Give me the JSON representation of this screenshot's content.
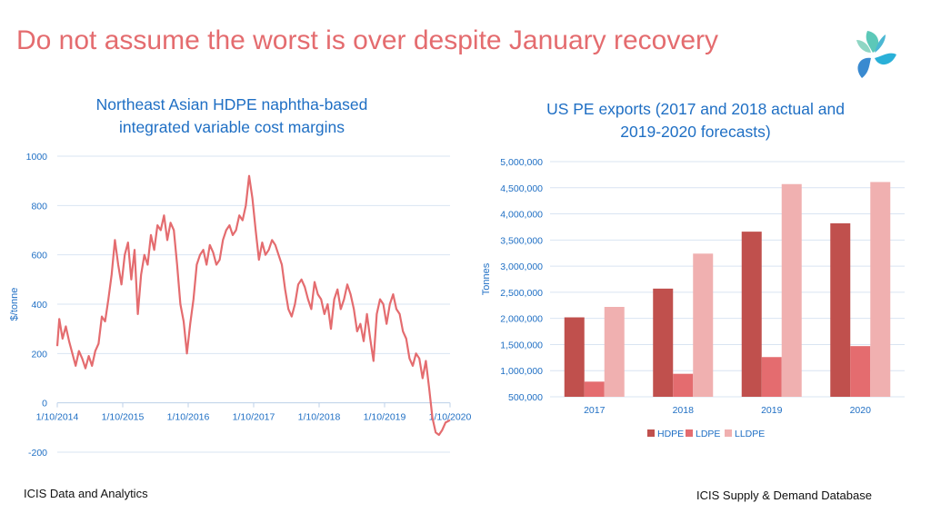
{
  "slide": {
    "title": "Do not assume the worst is over despite January recovery",
    "logo_icon": "icis-logo-icon",
    "footer_left": "ICIS Data and Analytics",
    "footer_right": "ICIS Supply & Demand Database"
  },
  "colors": {
    "title": "#e46c6f",
    "chart_title": "#1f6fc4",
    "line": "#e46c6f",
    "hdpe": "#c0504d",
    "ldpe": "#e46c6f",
    "lldpe": "#f0b0b0"
  },
  "chart_data": [
    {
      "type": "line",
      "title_lines": [
        "Northeast Asian HDPE naphtha-based",
        "integrated variable cost margins"
      ],
      "ylabel": "$/tonne",
      "xlabel": "",
      "ylim": [
        -200,
        1000
      ],
      "yticks": [
        -200,
        0,
        200,
        400,
        600,
        800,
        1000
      ],
      "ytick_labels": [
        "-200",
        "0",
        "200",
        "400",
        "600",
        "800",
        "1000"
      ],
      "xlim": [
        2014.77,
        2020.77
      ],
      "xticks": [
        2014.77,
        2015.77,
        2016.77,
        2017.77,
        2018.77,
        2019.77,
        2020.77
      ],
      "xtick_labels": [
        "1/10/2014",
        "1/10/2015",
        "1/10/2016",
        "1/10/2017",
        "1/10/2018",
        "1/10/2019",
        "1/10/2020"
      ],
      "grid": "horizontal",
      "series": [
        {
          "x": [
            2014.77,
            2014.8,
            2014.85,
            2014.9,
            2014.95,
            2015.0,
            2015.05,
            2015.1,
            2015.15,
            2015.2,
            2015.25,
            2015.3,
            2015.35,
            2015.4,
            2015.45,
            2015.5,
            2015.55,
            2015.6,
            2015.65,
            2015.7,
            2015.75,
            2015.8,
            2015.85,
            2015.9,
            2015.95,
            2016.0,
            2016.05,
            2016.1,
            2016.15,
            2016.2,
            2016.25,
            2016.3,
            2016.35,
            2016.4,
            2016.45,
            2016.5,
            2016.55,
            2016.6,
            2016.65,
            2016.7,
            2016.75,
            2016.8,
            2016.85,
            2016.9,
            2016.95,
            2017.0,
            2017.05,
            2017.1,
            2017.15,
            2017.2,
            2017.25,
            2017.3,
            2017.35,
            2017.4,
            2017.45,
            2017.5,
            2017.55,
            2017.6,
            2017.65,
            2017.7,
            2017.75,
            2017.8,
            2017.85,
            2017.9,
            2017.95,
            2018.0,
            2018.05,
            2018.1,
            2018.15,
            2018.2,
            2018.25,
            2018.3,
            2018.35,
            2018.4,
            2018.45,
            2018.5,
            2018.55,
            2018.6,
            2018.65,
            2018.7,
            2018.75,
            2018.8,
            2018.85,
            2018.9,
            2018.95,
            2019.0,
            2019.05,
            2019.1,
            2019.15,
            2019.2,
            2019.25,
            2019.3,
            2019.35,
            2019.4,
            2019.45,
            2019.5,
            2019.55,
            2019.6,
            2019.65,
            2019.7,
            2019.75,
            2019.8,
            2019.85,
            2019.9,
            2019.95,
            2020.0,
            2020.05,
            2020.1,
            2020.15,
            2020.2,
            2020.25,
            2020.3,
            2020.35,
            2020.4,
            2020.45,
            2020.5,
            2020.55,
            2020.6,
            2020.65,
            2020.7,
            2020.77
          ],
          "y": [
            230,
            340,
            260,
            310,
            250,
            200,
            150,
            210,
            180,
            140,
            190,
            150,
            210,
            240,
            350,
            330,
            420,
            520,
            660,
            560,
            480,
            600,
            650,
            500,
            620,
            360,
            520,
            600,
            560,
            680,
            620,
            720,
            700,
            760,
            660,
            730,
            700,
            560,
            400,
            330,
            200,
            320,
            420,
            560,
            600,
            620,
            560,
            640,
            610,
            560,
            580,
            660,
            700,
            720,
            680,
            700,
            760,
            740,
            800,
            920,
            830,
            700,
            580,
            650,
            600,
            620,
            660,
            640,
            600,
            560,
            460,
            380,
            350,
            400,
            480,
            500,
            470,
            420,
            380,
            490,
            440,
            420,
            360,
            400,
            300,
            420,
            460,
            380,
            420,
            480,
            440,
            380,
            290,
            320,
            250,
            360,
            260,
            170,
            360,
            420,
            400,
            320,
            400,
            440,
            380,
            360,
            290,
            260,
            180,
            150,
            200,
            180,
            100,
            170,
            60,
            -60,
            -120,
            -130,
            -110,
            -80,
            -70
          ]
        }
      ]
    },
    {
      "type": "bar",
      "title_lines": [
        "US PE exports (2017 and 2018 actual and",
        "2019-2020 forecasts)"
      ],
      "ylabel": "Tonnes",
      "xlabel": "",
      "ylim": [
        500000,
        5000000
      ],
      "yticks": [
        500000,
        1000000,
        1500000,
        2000000,
        2500000,
        3000000,
        3500000,
        4000000,
        4500000,
        5000000
      ],
      "ytick_labels": [
        "500,000",
        "1,000,000",
        "1,500,000",
        "2,000,000",
        "2,500,000",
        "3,000,000",
        "3,500,000",
        "4,000,000",
        "4,500,000",
        "5,000,000"
      ],
      "categories": [
        "2017",
        "2018",
        "2019",
        "2020"
      ],
      "grid": "horizontal",
      "legend": "bottom",
      "series": [
        {
          "name": "HDPE",
          "values": [
            2020000,
            2570000,
            3660000,
            3820000
          ]
        },
        {
          "name": "LDPE",
          "values": [
            790000,
            940000,
            1260000,
            1470000
          ]
        },
        {
          "name": "LLDPE",
          "values": [
            2220000,
            3240000,
            4570000,
            4610000
          ]
        }
      ]
    }
  ]
}
